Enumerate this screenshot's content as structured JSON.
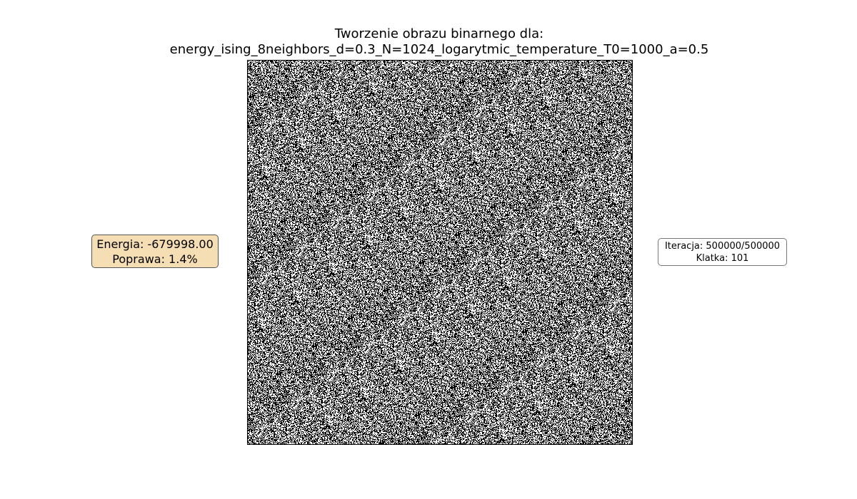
{
  "figure": {
    "title_line1": "Tworzenie obrazu binarnego dla:",
    "title_line2": "energy_ising_8neighbors_d=0.3_N=1024_logarytmic_temperature_T0=1000_a=0.5"
  },
  "energy_panel": {
    "energy_text": "Energia: -679998.00",
    "improvement_text": "Poprawa: 1.4%",
    "background_color": "#f5deb3"
  },
  "iteration_panel": {
    "iteration_text": "Iteracja: 500000/500000",
    "frame_text": "Klatka: 101"
  },
  "binary_image": {
    "grid_size": 1024,
    "black_fraction": 0.5,
    "colors": {
      "on": "#000000",
      "off": "#ffffff"
    }
  }
}
